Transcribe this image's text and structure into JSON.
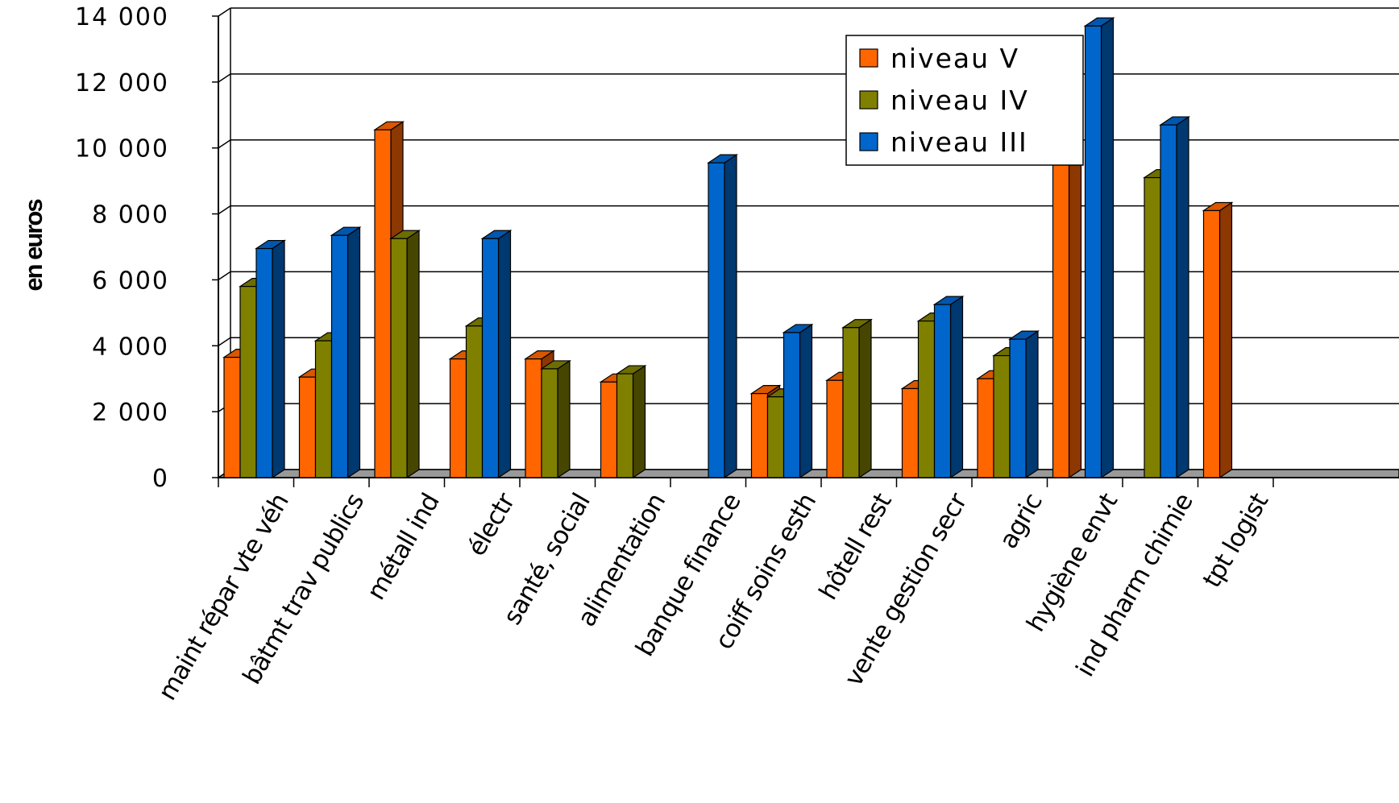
{
  "chart_data": {
    "type": "bar",
    "title": "",
    "xlabel": "",
    "ylabel": "en euros",
    "ylim": [
      0,
      14000
    ],
    "yticks": [
      0,
      2000,
      4000,
      6000,
      8000,
      10000,
      12000,
      14000
    ],
    "ytick_labels": [
      "0",
      "2 000",
      "4 000",
      "6 000",
      "8 000",
      "10 000",
      "12 000",
      "14 000"
    ],
    "grid": true,
    "legend_position": "top-center",
    "categories": [
      "maint répar vte véh",
      "bâtmt trav publics",
      "métall ind",
      "électr",
      "santé, social",
      "alimentation",
      "banque finance",
      "coiff soins esth",
      "hôtell rest",
      "vente gestion secr",
      "agric",
      "hygiène envt",
      "ind pharm chimie",
      "tpt logist"
    ],
    "series": [
      {
        "name": "niveau V",
        "color": "#ff6600",
        "values": [
          3650,
          3050,
          10550,
          3600,
          3600,
          2900,
          null,
          2550,
          2950,
          2700,
          3000,
          10450,
          null,
          8100
        ]
      },
      {
        "name": "niveau IV",
        "color": "#808000",
        "values": [
          5800,
          4150,
          7250,
          4600,
          3300,
          3150,
          null,
          2450,
          4550,
          4750,
          3700,
          null,
          9100,
          null
        ]
      },
      {
        "name": "niveau III",
        "color": "#0066cc",
        "values": [
          6950,
          7350,
          null,
          7250,
          null,
          null,
          9550,
          4400,
          null,
          5250,
          4200,
          13700,
          10700,
          null
        ]
      }
    ]
  }
}
